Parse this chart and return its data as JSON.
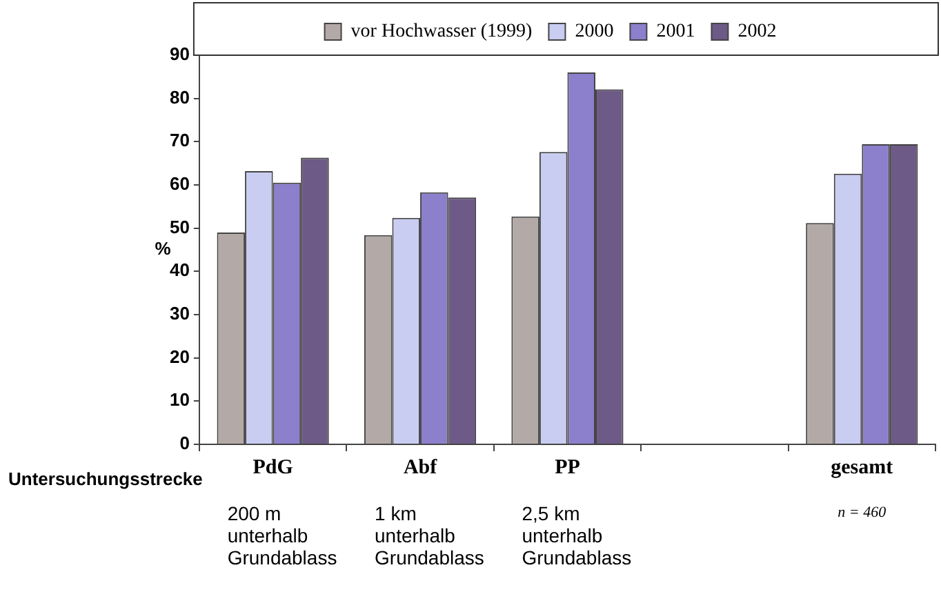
{
  "chart_data": {
    "type": "bar",
    "categories": [
      "PdG",
      "Abf",
      "PP",
      null,
      "gesamt"
    ],
    "series": [
      {
        "name": "vor Hochwasser (1999)",
        "color": "#b3aaa8",
        "values": [
          49,
          48.4,
          52.7,
          null,
          51.2
        ]
      },
      {
        "name": "2000",
        "color": "#c9cdf2",
        "values": [
          63.2,
          52.4,
          67.6,
          null,
          62.6
        ]
      },
      {
        "name": "2001",
        "color": "#8c7fcc",
        "values": [
          60.5,
          58.3,
          86,
          null,
          69.4
        ]
      },
      {
        "name": "2002",
        "color": "#6d5a86",
        "values": [
          66.3,
          57.1,
          82.1,
          null,
          69.4
        ]
      }
    ],
    "xlabel": "Untersuchungsstrecke",
    "ylabel": "%",
    "ylim": [
      0,
      90
    ],
    "yticks": [
      0,
      10,
      20,
      30,
      40,
      50,
      60,
      70,
      80,
      90
    ],
    "annotations": [
      "200 m\nunterhalb\nGrundablass",
      "1 km\nunterhalb\nGrundablass",
      "2,5 km\nunterhalb\nGrundablass",
      "n = 460"
    ],
    "grid": false,
    "legend": "top"
  }
}
